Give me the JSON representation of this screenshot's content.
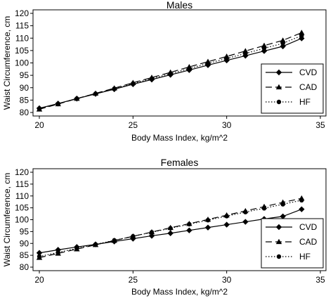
{
  "chart_data": [
    {
      "type": "line",
      "title": "Males",
      "xlabel": "Body Mass Index, kg/m^2",
      "ylabel": "Waist Circumference, cm",
      "xlim": [
        20,
        35
      ],
      "ylim": [
        80,
        120
      ],
      "xticks": [
        20,
        25,
        30,
        35
      ],
      "yticks": [
        80,
        85,
        90,
        95,
        100,
        105,
        110,
        115,
        120
      ],
      "x": [
        20,
        21,
        22,
        23,
        24,
        25,
        26,
        27,
        28,
        29,
        30,
        31,
        32,
        33,
        34
      ],
      "legend_position": "bottom-right",
      "grid": false,
      "series": [
        {
          "name": "CVD",
          "marker": "diamond",
          "dash": "solid",
          "values": [
            81.7,
            83.6,
            85.6,
            87.5,
            89.4,
            91.4,
            93.3,
            95.2,
            97.1,
            99.1,
            101.0,
            102.9,
            104.8,
            106.7,
            109.9
          ]
        },
        {
          "name": "CAD",
          "marker": "triangle",
          "dash": "longdash",
          "values": [
            81.3,
            83.4,
            85.6,
            87.7,
            89.8,
            92.0,
            94.1,
            96.2,
            98.4,
            100.5,
            102.6,
            104.8,
            107.0,
            109.1,
            112.2
          ]
        },
        {
          "name": "HF",
          "marker": "circle",
          "dash": "dotted",
          "values": [
            81.5,
            83.5,
            85.6,
            87.6,
            89.6,
            91.7,
            93.7,
            95.7,
            97.7,
            99.8,
            101.8,
            103.8,
            105.9,
            107.9,
            111.0
          ]
        }
      ]
    },
    {
      "type": "line",
      "title": "Females",
      "xlabel": "Body Mass Index, kg/m^2",
      "ylabel": "Waist Circumference, cm",
      "xlim": [
        20,
        35
      ],
      "ylim": [
        80,
        120
      ],
      "xticks": [
        20,
        25,
        30,
        35
      ],
      "yticks": [
        80,
        85,
        90,
        95,
        100,
        105,
        110,
        115,
        120
      ],
      "x": [
        20,
        21,
        22,
        23,
        24,
        25,
        26,
        27,
        28,
        29,
        30,
        31,
        32,
        33,
        34
      ],
      "legend_position": "bottom-right",
      "grid": false,
      "series": [
        {
          "name": "CVD",
          "marker": "diamond",
          "dash": "solid",
          "values": [
            86.0,
            87.3,
            88.5,
            89.6,
            90.8,
            92.0,
            93.2,
            94.3,
            95.5,
            96.7,
            97.9,
            99.1,
            100.3,
            101.4,
            104.4
          ]
        },
        {
          "name": "CAD",
          "marker": "triangle",
          "dash": "longdash",
          "values": [
            84.0,
            85.8,
            87.6,
            89.4,
            91.2,
            93.0,
            94.8,
            96.6,
            98.3,
            100.1,
            101.9,
            103.7,
            105.5,
            107.3,
            109.0
          ]
        },
        {
          "name": "HF",
          "marker": "circle",
          "dash": "dotted",
          "values": [
            84.5,
            86.2,
            87.9,
            89.6,
            91.3,
            93.0,
            94.7,
            96.4,
            98.1,
            99.8,
            101.5,
            103.2,
            104.8,
            106.5,
            108.2
          ]
        }
      ]
    }
  ]
}
